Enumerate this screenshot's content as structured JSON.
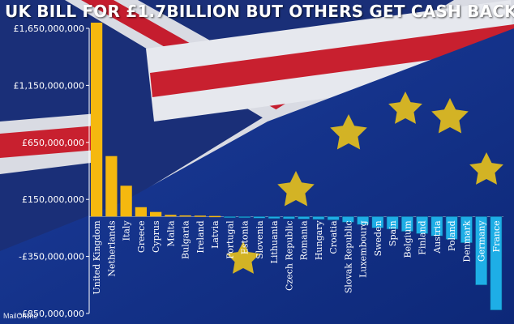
{
  "chart_data": {
    "type": "bar",
    "title": "UK BILL FOR £1.7BILLION BUT OTHERS GET CASH BACK",
    "xlabel": "",
    "ylabel": "",
    "ylim": [
      -850000000,
      1650000000
    ],
    "yticks": [
      1650000000,
      1150000000,
      650000000,
      150000000,
      -350000000,
      -850000000
    ],
    "ytick_labels": [
      "£1,650,000,000",
      "£1,150,000,000",
      "£650,000,000",
      "£150,000,000",
      "-£350,000,000",
      "-£850,000,000"
    ],
    "categories": [
      "United Kingdom",
      "Netherlands",
      "Italy",
      "Greece",
      "Cyprus",
      "Malta",
      "Bulgaria",
      "Ireland",
      "Latvia",
      "Portugal",
      "Estonia",
      "Slovenia",
      "Lithuania",
      "Czech Republic",
      "Romania",
      "Hungary",
      "Croatia",
      "Slovak Republic",
      "Luxembourg",
      "Sweden",
      "Spain",
      "Belgium",
      "Finland",
      "Austria",
      "Poland",
      "Denmark",
      "Germany",
      "France"
    ],
    "values": [
      1700000000,
      530000000,
      270000000,
      82000000,
      40000000,
      15000000,
      10000000,
      8000000,
      5000000,
      -3000000,
      -5000000,
      -15000000,
      -18000000,
      -20000000,
      -22000000,
      -25000000,
      -30000000,
      -50000000,
      -70000000,
      -100000000,
      -110000000,
      -130000000,
      -150000000,
      -170000000,
      -200000000,
      -230000000,
      -600000000,
      -820000000
    ],
    "series_colors": {
      "positive": "#f5b80f",
      "negative": "#1eaee6"
    }
  },
  "credit": "MailOnline"
}
